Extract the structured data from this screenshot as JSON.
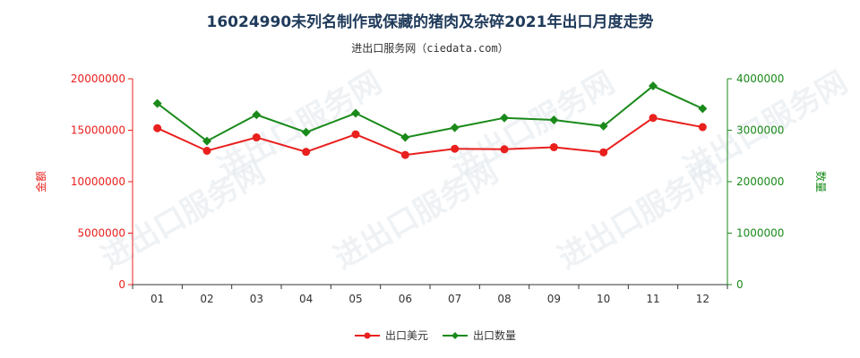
{
  "chart_data": {
    "type": "line",
    "title": "16024990未列名制作或保藏的猪肉及杂碎2021年出口月度走势",
    "subtitle": "进出口服务网（ciedata.com）",
    "categories": [
      "01",
      "02",
      "03",
      "04",
      "05",
      "06",
      "07",
      "08",
      "09",
      "10",
      "11",
      "12"
    ],
    "y_left": {
      "label": "金额",
      "range": [
        0,
        20000000
      ],
      "ticks": [
        "0",
        "5000000",
        "10000000",
        "15000000",
        "20000000"
      ],
      "color": "#e8201e"
    },
    "y_right": {
      "label": "数量",
      "range": [
        0,
        4000000
      ],
      "ticks": [
        "0",
        "1000000",
        "2000000",
        "3000000",
        "4000000"
      ],
      "color": "#1a8a1a"
    },
    "series": [
      {
        "name": "出口美元",
        "axis": "left",
        "color": "#e8201e",
        "marker": "circle",
        "values": [
          15200000,
          13000000,
          14300000,
          12900000,
          14600000,
          12600000,
          13200000,
          13150000,
          13350000,
          12850000,
          16200000,
          15300000
        ]
      },
      {
        "name": "出口数量",
        "axis": "right",
        "color": "#1a8a1a",
        "marker": "diamond",
        "values": [
          3520000,
          2790000,
          3300000,
          2960000,
          3330000,
          2860000,
          3050000,
          3240000,
          3200000,
          3080000,
          3860000,
          3420000
        ]
      }
    ],
    "grid": false,
    "legend_position": "bottom",
    "watermark": "进出口服务网"
  }
}
